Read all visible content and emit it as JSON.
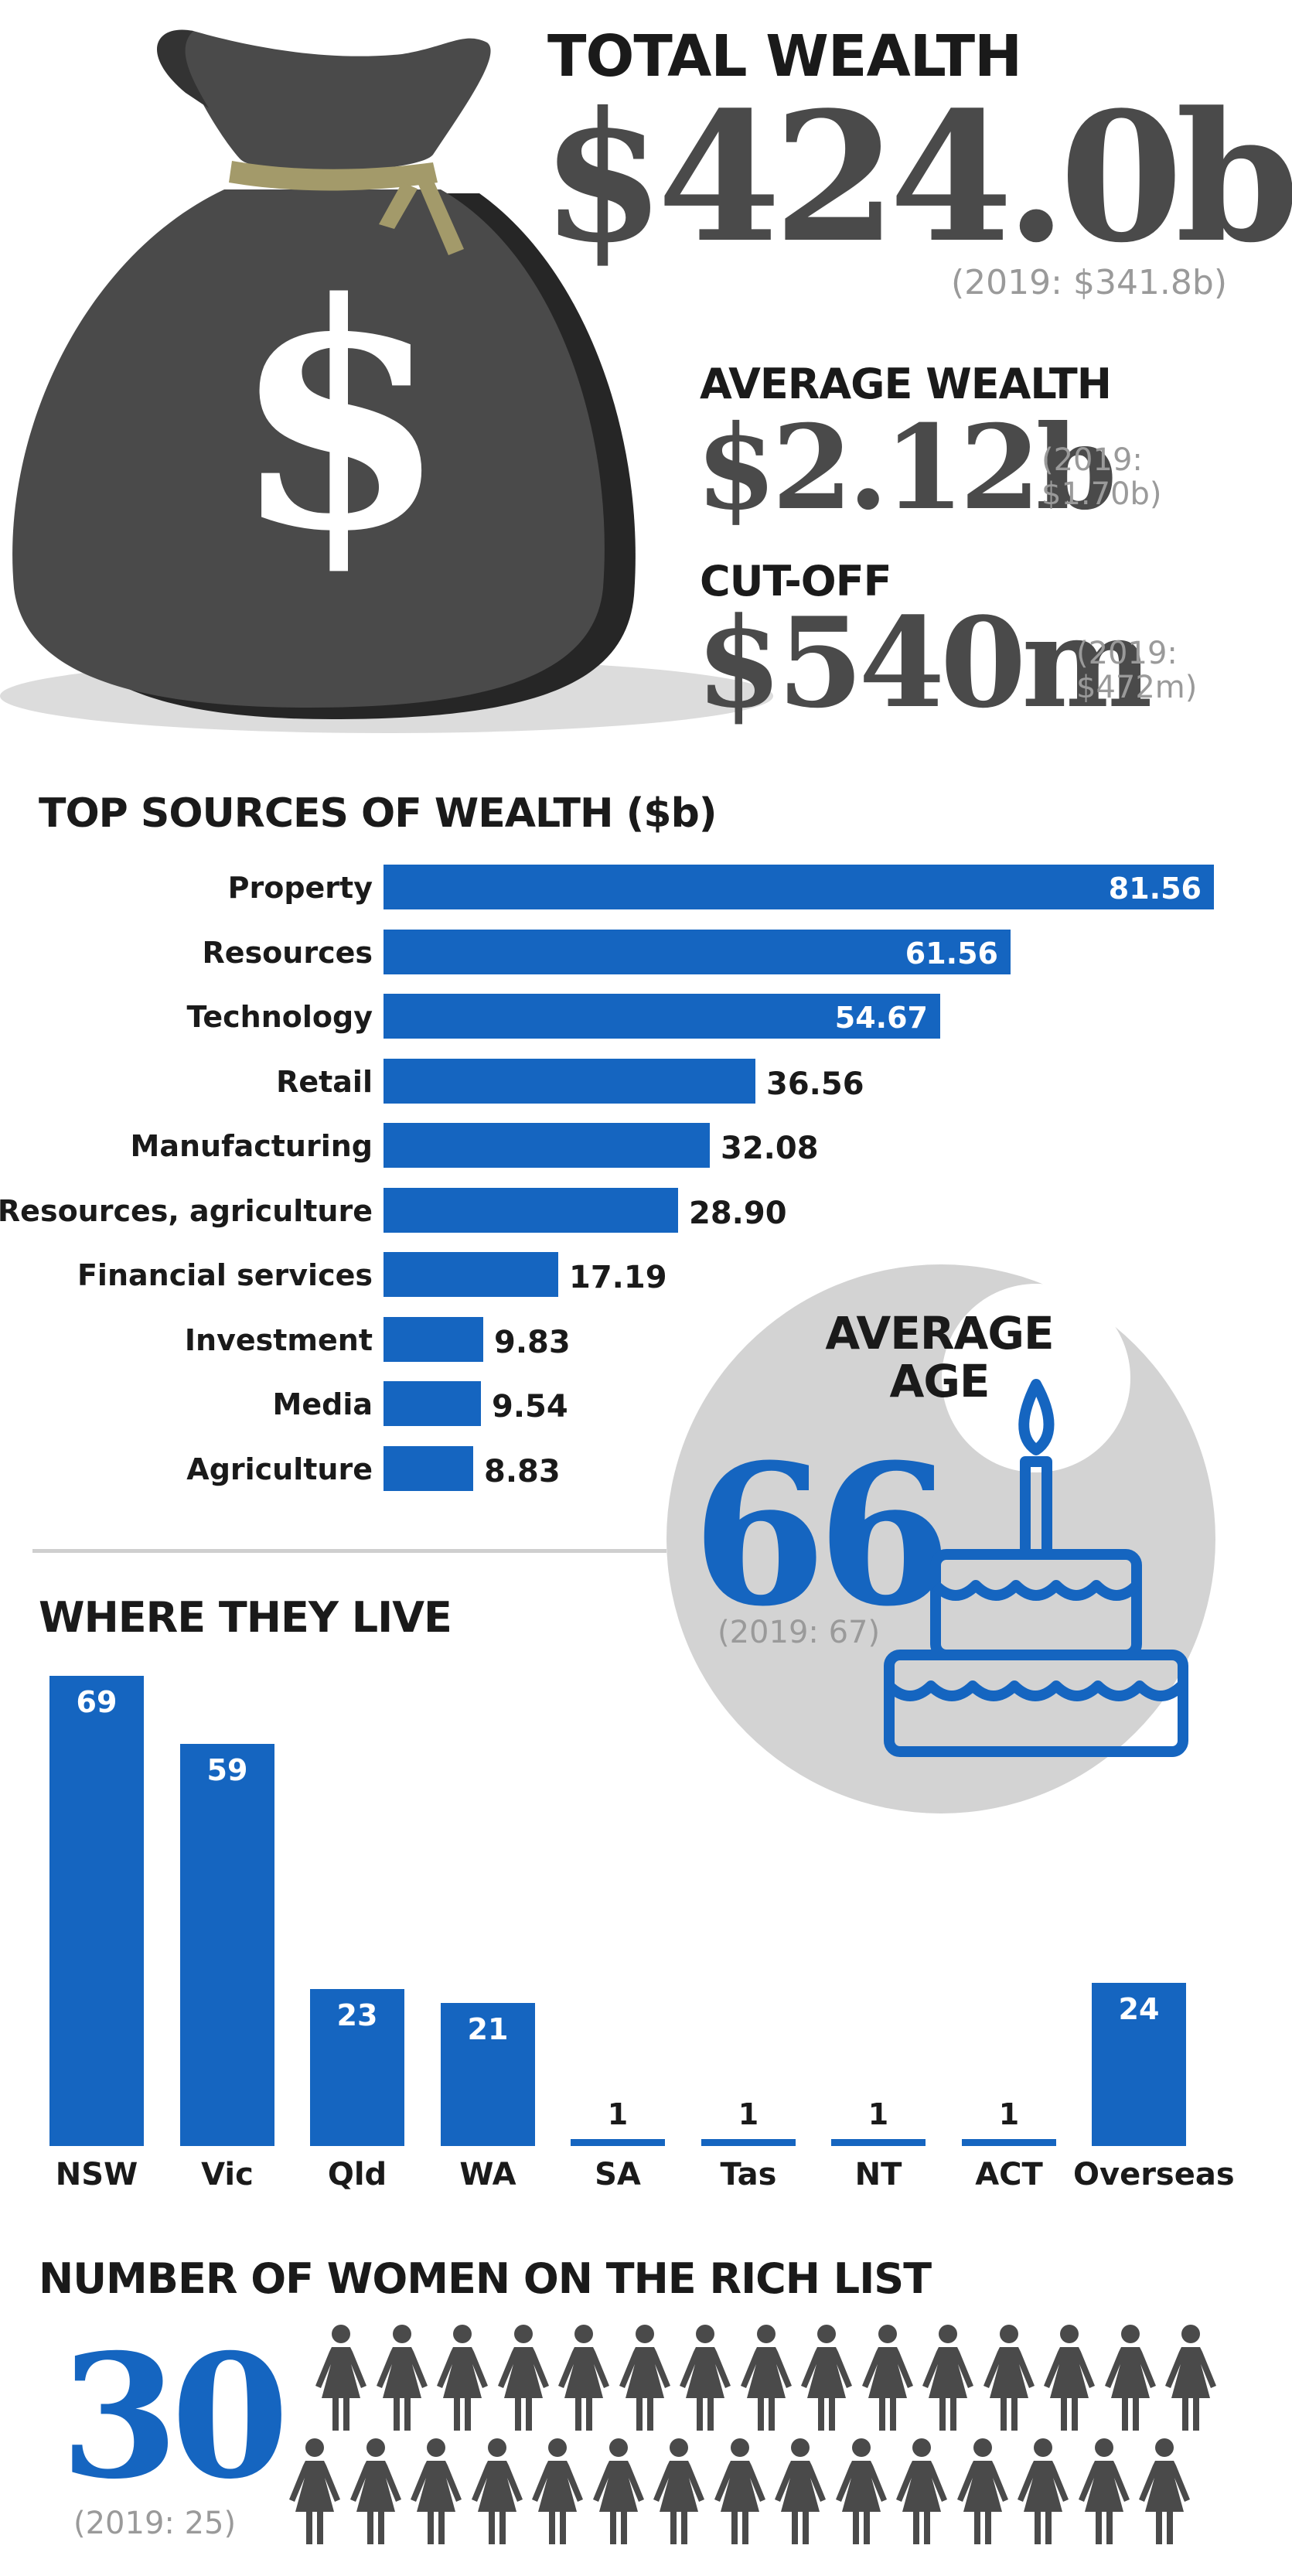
{
  "colors": {
    "accent": "#1565c0",
    "dark": "#4a4a4a",
    "light": "#9a9a9a",
    "circle": "#d3d3d3"
  },
  "header": {
    "total_label": "TOTAL WEALTH",
    "total_value": "$424.0b",
    "total_prev": "(2019: $341.8b)",
    "avg_label": "AVERAGE WEALTH",
    "avg_value": "$2.12b",
    "avg_prev_1": "(2019:",
    "avg_prev_2": "$1.70b)",
    "cutoff_label": "CUT-OFF",
    "cutoff_value": "$540m",
    "cutoff_prev_1": "(2019:",
    "cutoff_prev_2": "$472m)",
    "bag_symbol": "$",
    "icon": "money-bag-icon"
  },
  "age": {
    "title_1": "AVERAGE",
    "title_2": "AGE",
    "value": "66",
    "prev": "(2019: 67)",
    "icon": "birthday-cake-icon"
  },
  "women": {
    "title": "NUMBER OF WOMEN ON THE RICH LIST",
    "value": "30",
    "prev": "(2019: 25)",
    "count": 30,
    "icon": "woman-icon"
  },
  "chart_data": [
    {
      "type": "bar",
      "orientation": "horizontal",
      "title": "TOP SOURCES OF WEALTH ($b)",
      "categories": [
        "Property",
        "Resources",
        "Technology",
        "Retail",
        "Manufacturing",
        "Resources, agriculture",
        "Financial services",
        "Investment",
        "Media",
        "Agriculture"
      ],
      "values": [
        81.56,
        61.56,
        54.67,
        36.56,
        32.08,
        28.9,
        17.19,
        9.83,
        9.54,
        8.83
      ],
      "labels": [
        "81.56",
        "61.56",
        "54.67",
        "36.56",
        "32.08",
        "28.90",
        "17.19",
        "9.83",
        "9.54",
        "8.83"
      ],
      "xlim": [
        0,
        81.56
      ]
    },
    {
      "type": "bar",
      "orientation": "vertical",
      "title": "WHERE THEY LIVE",
      "categories": [
        "NSW",
        "Vic",
        "Qld",
        "WA",
        "SA",
        "Tas",
        "NT",
        "ACT",
        "Overseas"
      ],
      "values": [
        69,
        59,
        23,
        21,
        1,
        1,
        1,
        1,
        24
      ],
      "labels": [
        "69",
        "59",
        "23",
        "21",
        "1",
        "1",
        "1",
        "1",
        "24"
      ],
      "ylim": [
        0,
        69
      ]
    }
  ]
}
